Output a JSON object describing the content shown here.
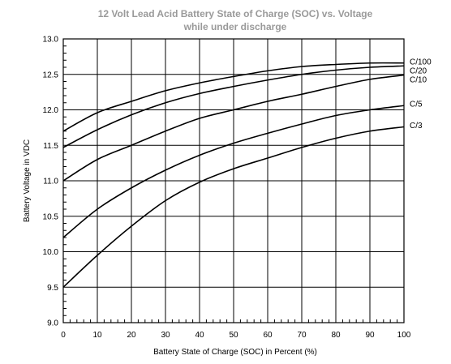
{
  "chart_data": {
    "type": "line",
    "title": "12 Volt Lead Acid Battery State of Charge (SOC) vs. Voltage",
    "subtitle": "while under discharge",
    "xlabel": "Battery State of Charge (SOC) in Percent (%)",
    "ylabel": "Battery Voltage in VDC",
    "xlim": [
      0,
      100
    ],
    "ylim": [
      9.0,
      13.0
    ],
    "x_ticks": [
      "0",
      "10",
      "20",
      "30",
      "40",
      "50",
      "60",
      "70",
      "80",
      "90",
      "100"
    ],
    "y_ticks": [
      "9.0",
      "9.5",
      "10.0",
      "10.5",
      "11.0",
      "11.5",
      "12.0",
      "12.5",
      "13.0"
    ],
    "grid": true,
    "colors": {
      "line": "#000000",
      "grid": "#000000",
      "title": "#9a9a9a"
    },
    "x": [
      0,
      10,
      20,
      30,
      40,
      50,
      60,
      70,
      80,
      90,
      100
    ],
    "series": [
      {
        "name": "C/100",
        "values": [
          11.7,
          11.96,
          12.12,
          12.27,
          12.38,
          12.47,
          12.55,
          12.61,
          12.64,
          12.66,
          12.66
        ]
      },
      {
        "name": "C/20",
        "values": [
          11.47,
          11.72,
          11.93,
          12.1,
          12.23,
          12.33,
          12.42,
          12.5,
          12.56,
          12.6,
          12.62
        ]
      },
      {
        "name": "C/10",
        "values": [
          11.0,
          11.3,
          11.5,
          11.7,
          11.88,
          12.0,
          12.12,
          12.22,
          12.33,
          12.43,
          12.49
        ]
      },
      {
        "name": "C/5",
        "values": [
          10.2,
          10.6,
          10.9,
          11.15,
          11.36,
          11.53,
          11.67,
          11.8,
          11.92,
          12.0,
          12.06
        ]
      },
      {
        "name": "C/3",
        "values": [
          9.5,
          9.95,
          10.36,
          10.72,
          10.98,
          11.17,
          11.32,
          11.47,
          11.6,
          11.7,
          11.76
        ]
      }
    ]
  }
}
